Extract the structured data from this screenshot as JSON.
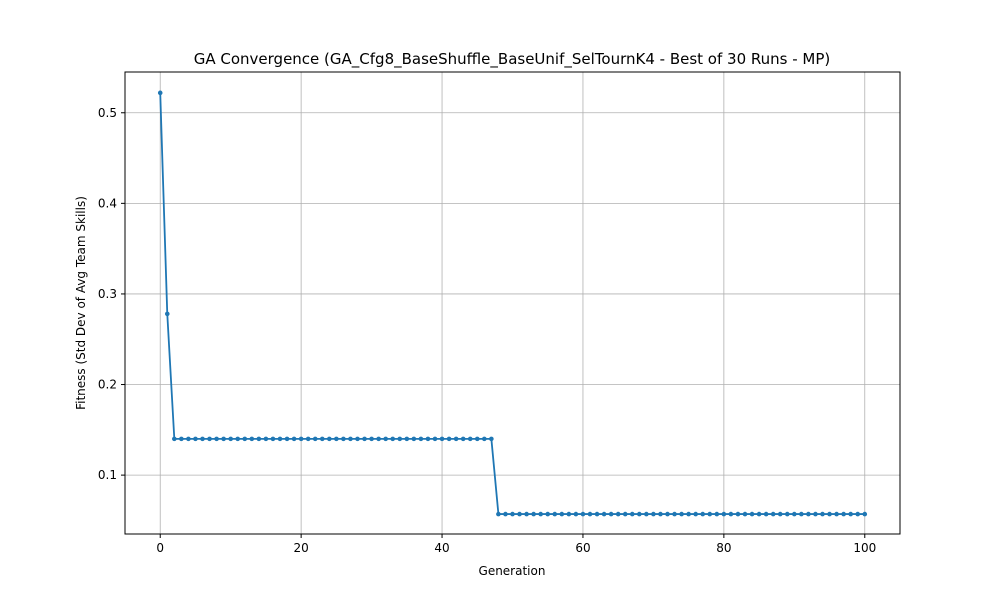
{
  "chart_data": {
    "type": "line",
    "title": "GA Convergence (GA_Cfg8_BaseShuffle_BaseUnif_SelTournK4 - Best of 30 Runs - MP)",
    "xlabel": "Generation",
    "ylabel": "Fitness (Std Dev of Avg Team Skills)",
    "xlim": [
      -5,
      105
    ],
    "ylim": [
      0.035,
      0.545
    ],
    "xticks": [
      0,
      20,
      40,
      60,
      80,
      100
    ],
    "yticks": [
      0.1,
      0.2,
      0.3,
      0.4,
      0.5
    ],
    "xtick_labels": [
      "0",
      "20",
      "40",
      "60",
      "80",
      "100"
    ],
    "ytick_labels": [
      "0.1",
      "0.2",
      "0.3",
      "0.4",
      "0.5"
    ],
    "grid": true,
    "marker": "circle",
    "color": "#1f77b4",
    "series": [
      {
        "x": [
          0,
          1,
          2,
          3,
          4,
          5,
          6,
          7,
          8,
          9,
          10,
          11,
          12,
          13,
          14,
          15,
          16,
          17,
          18,
          19,
          20,
          21,
          22,
          23,
          24,
          25,
          26,
          27,
          28,
          29,
          30,
          31,
          32,
          33,
          34,
          35,
          36,
          37,
          38,
          39,
          40,
          41,
          42,
          43,
          44,
          45,
          46,
          47,
          48,
          49,
          50,
          51,
          52,
          53,
          54,
          55,
          56,
          57,
          58,
          59,
          60,
          61,
          62,
          63,
          64,
          65,
          66,
          67,
          68,
          69,
          70,
          71,
          72,
          73,
          74,
          75,
          76,
          77,
          78,
          79,
          80,
          81,
          82,
          83,
          84,
          85,
          86,
          87,
          88,
          89,
          90,
          91,
          92,
          93,
          94,
          95,
          96,
          97,
          98,
          99,
          100
        ],
        "y": [
          0.522,
          0.278,
          0.14,
          0.14,
          0.14,
          0.14,
          0.14,
          0.14,
          0.14,
          0.14,
          0.14,
          0.14,
          0.14,
          0.14,
          0.14,
          0.14,
          0.14,
          0.14,
          0.14,
          0.14,
          0.14,
          0.14,
          0.14,
          0.14,
          0.14,
          0.14,
          0.14,
          0.14,
          0.14,
          0.14,
          0.14,
          0.14,
          0.14,
          0.14,
          0.14,
          0.14,
          0.14,
          0.14,
          0.14,
          0.14,
          0.14,
          0.14,
          0.14,
          0.14,
          0.14,
          0.14,
          0.14,
          0.14,
          0.057,
          0.057,
          0.057,
          0.057,
          0.057,
          0.057,
          0.057,
          0.057,
          0.057,
          0.057,
          0.057,
          0.057,
          0.057,
          0.057,
          0.057,
          0.057,
          0.057,
          0.057,
          0.057,
          0.057,
          0.057,
          0.057,
          0.057,
          0.057,
          0.057,
          0.057,
          0.057,
          0.057,
          0.057,
          0.057,
          0.057,
          0.057,
          0.057,
          0.057,
          0.057,
          0.057,
          0.057,
          0.057,
          0.057,
          0.057,
          0.057,
          0.057,
          0.057,
          0.057,
          0.057,
          0.057,
          0.057,
          0.057,
          0.057,
          0.057,
          0.057,
          0.057,
          0.057
        ]
      }
    ]
  }
}
